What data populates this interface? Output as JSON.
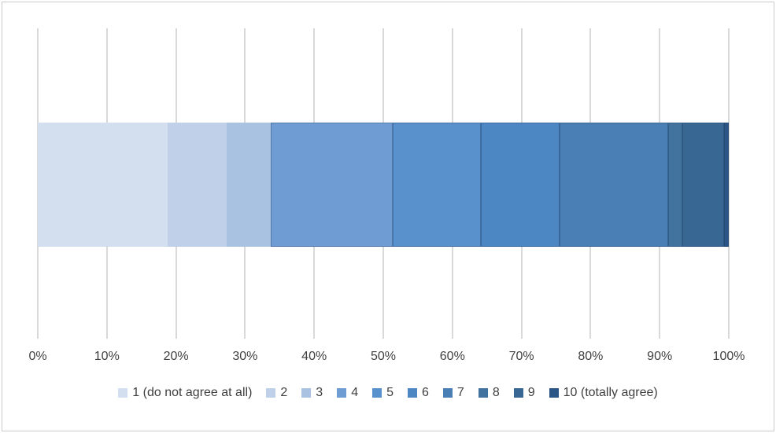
{
  "chart_data": {
    "type": "bar",
    "variant": "horizontal-stacked",
    "title": "",
    "xlabel": "",
    "ylabel": "",
    "xlim": [
      0,
      100
    ],
    "grid": true,
    "gridline_color": "#d9d9d9",
    "background_color": "#ffffff",
    "axis_text_color": "#3f3f3f",
    "legend_position": "bottom",
    "x_ticks": [
      "0%",
      "10%",
      "20%",
      "30%",
      "40%",
      "50%",
      "60%",
      "70%",
      "80%",
      "90%",
      "100%"
    ],
    "series": [
      {
        "name": "1 (do not agree at all)",
        "value": 18.9,
        "color": "#d3deef"
      },
      {
        "name": "2",
        "value": 8.6,
        "color": "#bfd0e8"
      },
      {
        "name": "3",
        "value": 6.3,
        "color": "#a9c2e1"
      },
      {
        "name": "4",
        "value": 17.8,
        "color": "#6f9cd3"
      },
      {
        "name": "5",
        "value": 12.8,
        "color": "#5991cc"
      },
      {
        "name": "6",
        "value": 11.4,
        "color": "#4c86c3"
      },
      {
        "name": "7",
        "value": 15.8,
        "color": "#4a7fb5"
      },
      {
        "name": "8",
        "value": 2.1,
        "color": "#42739f"
      },
      {
        "name": "9",
        "value": 6.0,
        "color": "#396794"
      },
      {
        "name": "10 (totally agree)",
        "value": 0.7,
        "color": "#2b5584"
      }
    ]
  }
}
